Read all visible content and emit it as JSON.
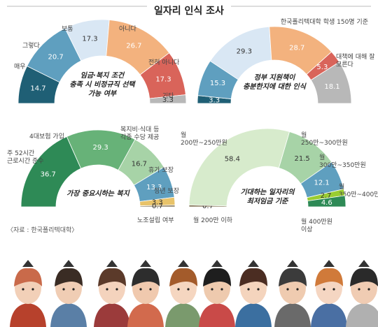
{
  "title": "일자리 인식 조사",
  "subtitle": "한국폴리텍대학 학생 150명 기준",
  "source": "〈자료 : 한국폴리텍대학〉",
  "chart_data": [
    {
      "type": "pie",
      "caption": [
        "임금·복지 조건",
        "충족 시 비정규직 선택",
        "가능 여부"
      ],
      "categories": [
        "매우 그렇다",
        "그렇다",
        "보통",
        "아니다",
        "전혀 아니다",
        "기타"
      ],
      "values": [
        14.7,
        20.7,
        17.3,
        26.7,
        17.3,
        3.3
      ],
      "value_labels": [
        "14.7",
        "20.7",
        "17.3",
        "26.7",
        "17.3",
        "3.3"
      ],
      "colors": [
        "#1f5f75",
        "#5f9fbf",
        "#d9e7f4",
        "#f3b27e",
        "#d9645a",
        "#b8b8b8"
      ],
      "legend": "outside-labels"
    },
    {
      "type": "pie",
      "caption": [
        "정부 지원책이",
        "충분한지에 대한 인식"
      ],
      "categories": [
        "",
        "",
        "",
        "",
        "",
        "대책에 대해 잘 모른다"
      ],
      "values": [
        3.3,
        15.3,
        29.3,
        28.7,
        5.3,
        18.1
      ],
      "value_labels": [
        "3.3",
        "15.3",
        "29.3",
        "28.7",
        "5.3",
        "18.1"
      ],
      "colors": [
        "#1f5f75",
        "#5f9fbf",
        "#d9e7f4",
        "#f3b27e",
        "#d9645a",
        "#b8b8b8"
      ],
      "legend": "outside-labels"
    },
    {
      "type": "pie",
      "caption": [
        "가장 중요시하는 복지"
      ],
      "categories": [
        "주 52시간 근로시간 준수",
        "4대보험 가입",
        "복지비·식대 등 각종 수당 제공",
        "휴가 보장",
        "정년 보장",
        "노조설립 여부"
      ],
      "values": [
        36.7,
        29.3,
        16.7,
        13.3,
        3.3,
        0.7
      ],
      "value_labels": [
        "36.7",
        "29.3",
        "16.7",
        "13.3",
        "3.3",
        "0.7"
      ],
      "colors": [
        "#2e8a56",
        "#67b278",
        "#a7d3a7",
        "#5f9fbf",
        "#e8c36a",
        "#7a6a4a"
      ],
      "legend": "outside-labels"
    },
    {
      "type": "pie",
      "caption": [
        "기대하는 일자리의",
        "최저임금 기준"
      ],
      "categories": [
        "월 200만 이하",
        "월 200만~250만원",
        "월 250만~300만원",
        "월 300만~350만원",
        "월 350만~400만원",
        "월 400만원 이상"
      ],
      "values": [
        0.7,
        58.4,
        21.5,
        12.1,
        2.7,
        4.6
      ],
      "value_labels": [
        "0.7",
        "58.4",
        "21.5",
        "12.1",
        "2.7",
        "4.6"
      ],
      "colors": [
        "#7a6a4a",
        "#d7ebcc",
        "#a7d3a7",
        "#5f9fbf",
        "#9acd32",
        "#2e8a56"
      ],
      "legend": "outside-labels"
    }
  ]
}
